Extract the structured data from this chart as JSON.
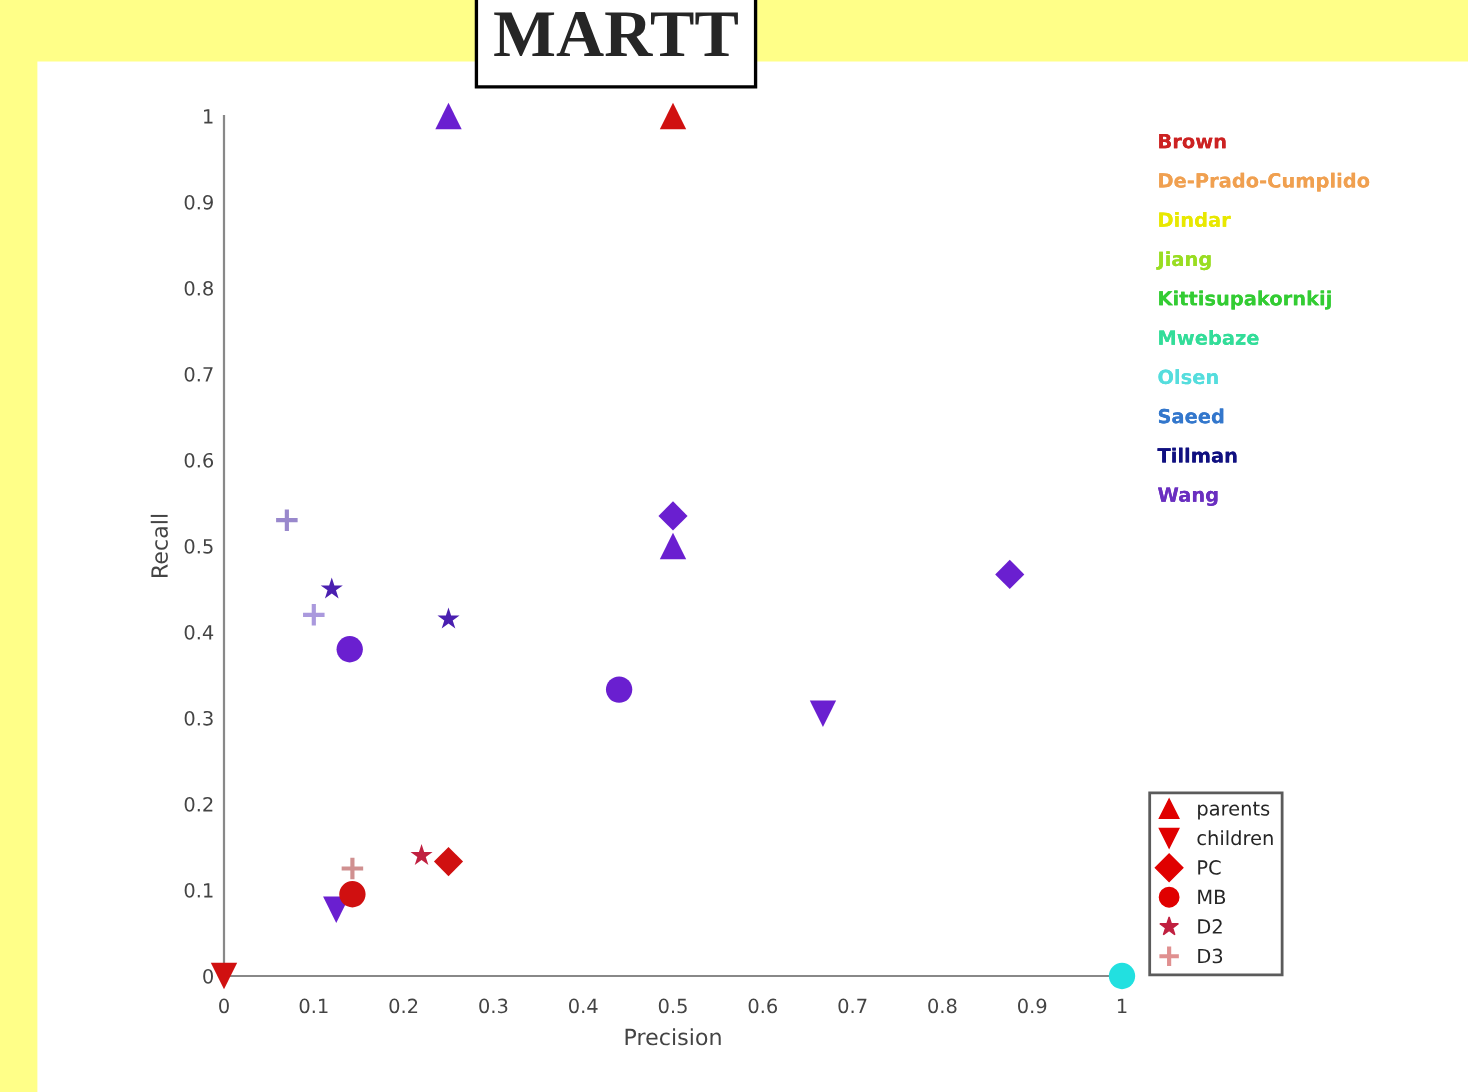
{
  "chart_data": {
    "type": "scatter",
    "title": "MARTT",
    "xlabel": "Precision",
    "ylabel": "Recall",
    "xlim": [
      0,
      1
    ],
    "ylim": [
      0,
      1
    ],
    "xticks": [
      0,
      0.1,
      0.2,
      0.3,
      0.4,
      0.5,
      0.6,
      0.7,
      0.8,
      0.9,
      1
    ],
    "yticks": [
      0,
      0.1,
      0.2,
      0.3,
      0.4,
      0.5,
      0.6,
      0.7,
      0.8,
      0.9,
      1
    ],
    "grid": false,
    "legend": "right",
    "series": [
      {
        "name": "parents",
        "marker": "triangle",
        "color": "#e00000",
        "x": [
          0.25,
          0.5,
          0.5
        ],
        "values": [
          1,
          1,
          0.5
        ],
        "colors": [
          "#6a1fd0",
          "#d01010",
          "#6a1fd0"
        ]
      },
      {
        "name": "children",
        "marker": "triangle_down",
        "color": "#e00000",
        "x": [
          0,
          0.125,
          0.667
        ],
        "values": [
          0,
          0.077,
          0.305
        ],
        "colors": [
          "#d01010",
          "#6a1fd0",
          "#6a1fd0"
        ]
      },
      {
        "name": "PC",
        "marker": "diamond",
        "color": "#e00000",
        "x": [
          0.25,
          0.5,
          0.875
        ],
        "values": [
          0.133,
          0.535,
          0.467
        ],
        "colors": [
          "#d01010",
          "#6a1fd0",
          "#6a1fd0"
        ]
      },
      {
        "name": "MB",
        "marker": "circle",
        "color": "#e00000",
        "x": [
          0.143,
          0.14,
          0.44,
          1
        ],
        "values": [
          0.095,
          0.38,
          0.333,
          0
        ],
        "colors": [
          "#d01010",
          "#6a1fd0",
          "#6a1fd0",
          "#22e0e0"
        ]
      },
      {
        "name": "D2",
        "marker": "star",
        "color": "#c02040",
        "x": [
          0.22,
          0.12,
          0.25
        ],
        "values": [
          0.14,
          0.45,
          0.415
        ],
        "colors": [
          "#c02040",
          "#4a1fb0",
          "#4a1fb0"
        ]
      },
      {
        "name": "D3",
        "marker": "cross",
        "color": "#e09090",
        "x": [
          0.143,
          0.07,
          0.1
        ],
        "values": [
          0.125,
          0.53,
          0.42
        ],
        "colors": [
          "#d09090",
          "#9988cc",
          "#aa99dd"
        ]
      },
      {
        "name": "Brown",
        "color": "#cc2222"
      },
      {
        "name": "De-Prado-Cumplido",
        "color": "#f0a050"
      },
      {
        "name": "Dindar",
        "color": "#e8e800"
      },
      {
        "name": "Jiang",
        "color": "#99dd22"
      },
      {
        "name": "Kittisupakornkij",
        "color": "#33cc33"
      },
      {
        "name": "Mwebaze",
        "color": "#33dd99"
      },
      {
        "name": "Olsen",
        "color": "#55dddd"
      },
      {
        "name": "Saeed",
        "color": "#3377cc"
      },
      {
        "name": "Tillman",
        "color": "#101080"
      },
      {
        "name": "Wang",
        "color": "#6a2fc0"
      }
    ]
  }
}
